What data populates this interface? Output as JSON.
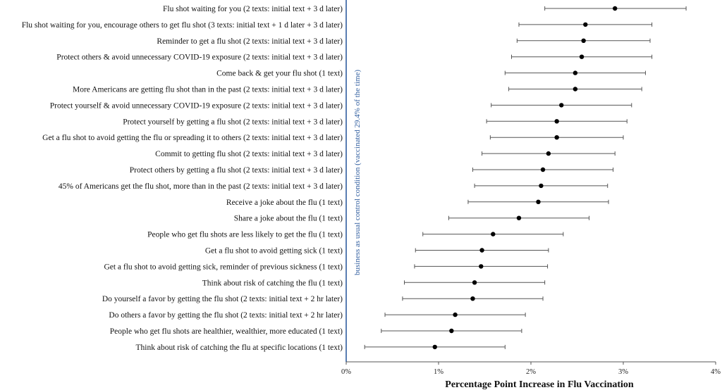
{
  "chart_data": {
    "type": "forest-plot",
    "xlabel": "Percentage Point Increase in Flu Vaccination",
    "xlim": [
      0,
      4
    ],
    "x_ticks": [
      "0%",
      "1%",
      "2%",
      "3%",
      "4%"
    ],
    "reference_line": {
      "value": 0,
      "label": "business as usual control condition (vaccinated 29.4% of the time)",
      "color": "#2f5d9f"
    },
    "point_color": "#000000",
    "errorbar_color": "#555555",
    "rows": [
      {
        "label": "Flu shot waiting for you (2 texts: initial text + 3 d later)",
        "estimate": 2.91,
        "ci_low": 2.15,
        "ci_high": 3.68
      },
      {
        "label": "Flu shot waiting for you, encourage others to get flu shot (3 texts: initial text + 1 d later + 3 d later)",
        "estimate": 2.59,
        "ci_low": 1.87,
        "ci_high": 3.31
      },
      {
        "label": "Reminder to get a flu shot (2 texts: initial text + 3 d later)",
        "estimate": 2.57,
        "ci_low": 1.85,
        "ci_high": 3.29
      },
      {
        "label": "Protect others & avoid unnecessary COVID-19 exposure (2 texts: initial text + 3 d later)",
        "estimate": 2.55,
        "ci_low": 1.79,
        "ci_high": 3.31
      },
      {
        "label": "Come back & get your flu shot (1 text)",
        "estimate": 2.48,
        "ci_low": 1.72,
        "ci_high": 3.24
      },
      {
        "label": "More Americans are getting flu shot than in the past (2 texts: initial text + 3 d later)",
        "estimate": 2.48,
        "ci_low": 1.76,
        "ci_high": 3.2
      },
      {
        "label": "Protect yourself & avoid unnecessary COVID-19 exposure (2 texts: initial text + 3 d later)",
        "estimate": 2.33,
        "ci_low": 1.57,
        "ci_high": 3.09
      },
      {
        "label": "Protect yourself by getting a flu shot (2 texts: initial text + 3 d later)",
        "estimate": 2.28,
        "ci_low": 1.52,
        "ci_high": 3.04
      },
      {
        "label": "Get a flu shot to avoid getting the flu or spreading it to others (2 texts: initial text + 3 d later)",
        "estimate": 2.28,
        "ci_low": 1.56,
        "ci_high": 3.0
      },
      {
        "label": "Commit to getting flu shot (2 texts: initial text + 3 d later)",
        "estimate": 2.19,
        "ci_low": 1.47,
        "ci_high": 2.91
      },
      {
        "label": "Protect others by getting a flu shot (2 texts: initial text + 3 d later)",
        "estimate": 2.13,
        "ci_low": 1.37,
        "ci_high": 2.89
      },
      {
        "label": "45% of Americans get the flu shot, more than in the past (2 texts: initial text + 3 d later)",
        "estimate": 2.11,
        "ci_low": 1.39,
        "ci_high": 2.83
      },
      {
        "label": "Receive a joke about the flu (1 text)",
        "estimate": 2.08,
        "ci_low": 1.32,
        "ci_high": 2.84
      },
      {
        "label": "Share a joke about the flu (1 text)",
        "estimate": 1.87,
        "ci_low": 1.11,
        "ci_high": 2.63
      },
      {
        "label": "People who get flu shots are less likely to get the flu (1 text)",
        "estimate": 1.59,
        "ci_low": 0.83,
        "ci_high": 2.35
      },
      {
        "label": "Get a flu shot to avoid getting sick (1 text)",
        "estimate": 1.47,
        "ci_low": 0.75,
        "ci_high": 2.19
      },
      {
        "label": "Get a flu shot to avoid getting sick, reminder of previous sickness (1 text)",
        "estimate": 1.46,
        "ci_low": 0.74,
        "ci_high": 2.18
      },
      {
        "label": "Think about risk of catching the flu (1 text)",
        "estimate": 1.39,
        "ci_low": 0.63,
        "ci_high": 2.15
      },
      {
        "label": "Do yourself a favor by getting the flu shot (2 texts: initial text + 2 hr later)",
        "estimate": 1.37,
        "ci_low": 0.61,
        "ci_high": 2.13
      },
      {
        "label": "Do others a favor by getting the flu shot (2 texts: initial text + 2 hr later)",
        "estimate": 1.18,
        "ci_low": 0.42,
        "ci_high": 1.94
      },
      {
        "label": "People who get flu shots are healthier, wealthier, more educated (1 text)",
        "estimate": 1.14,
        "ci_low": 0.38,
        "ci_high": 1.9
      },
      {
        "label": "Think about risk of catching the flu at specific locations (1 text)",
        "estimate": 0.96,
        "ci_low": 0.2,
        "ci_high": 1.72
      }
    ]
  }
}
